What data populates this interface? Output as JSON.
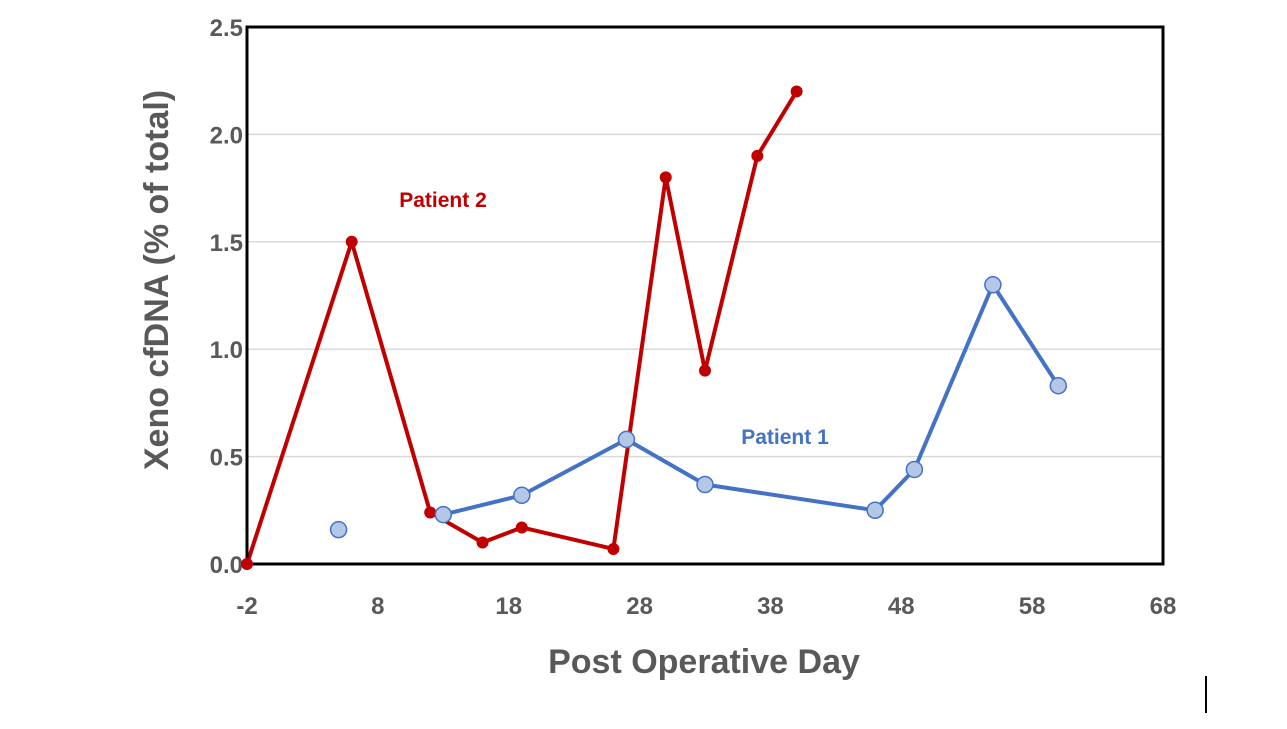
{
  "chart_data": {
    "type": "line",
    "title": "",
    "xlabel": "Post Operative Day",
    "ylabel": "Xeno cfDNA (% of total)",
    "xlim": [
      -2,
      68
    ],
    "ylim": [
      0,
      2.5
    ],
    "xticks": [
      "-2",
      "8",
      "18",
      "28",
      "38",
      "48",
      "58",
      "68"
    ],
    "yticks": [
      "0.0",
      "0.5",
      "1.0",
      "1.5",
      "2.0",
      "2.5"
    ],
    "grid": true,
    "series": [
      {
        "name": "Patient 2",
        "color": "#c00000",
        "x": [
          -2,
          6,
          12,
          16,
          19,
          26,
          30,
          33,
          37,
          40
        ],
        "y": [
          0.0,
          1.5,
          0.24,
          0.1,
          0.17,
          0.07,
          1.8,
          0.9,
          1.9,
          2.2
        ]
      },
      {
        "name": "Patient 1",
        "color": "#4472c4",
        "marker_fill": "#b4c7e7",
        "x": [
          5,
          13,
          19,
          27,
          33,
          46,
          49,
          55,
          60
        ],
        "y": [
          0.16,
          0.23,
          0.32,
          0.58,
          0.37,
          0.25,
          0.44,
          1.3,
          0.83
        ]
      }
    ]
  }
}
